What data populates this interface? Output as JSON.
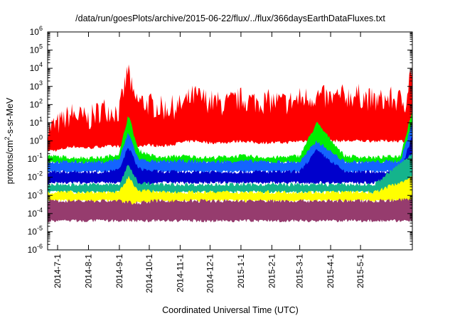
{
  "chart_data": {
    "type": "area",
    "title": "/data/run/goesPlots/archive/2015-06-22/flux/../flux/366daysEarthDataFluxes.txt",
    "xlabel": "Coordinated Universal Time (UTC)",
    "ylabel_parts": [
      "protons/cm",
      "2",
      "-s-sr-MeV"
    ],
    "y_scale": "log",
    "ylim": [
      1e-06,
      1000000.0
    ],
    "xlim": [
      "2014-06-21",
      "2015-06-22"
    ],
    "y_ticks": [
      {
        "base": "10",
        "exp": "-6"
      },
      {
        "base": "10",
        "exp": "-5"
      },
      {
        "base": "10",
        "exp": "-4"
      },
      {
        "base": "10",
        "exp": "-3"
      },
      {
        "base": "10",
        "exp": "-2"
      },
      {
        "base": "10",
        "exp": "-1"
      },
      {
        "base": "10",
        "exp": "0"
      },
      {
        "base": "10",
        "exp": "1"
      },
      {
        "base": "10",
        "exp": "2"
      },
      {
        "base": "10",
        "exp": "3"
      },
      {
        "base": "10",
        "exp": "4"
      },
      {
        "base": "10",
        "exp": "5"
      },
      {
        "base": "10",
        "exp": "6"
      }
    ],
    "x_ticks": [
      {
        "label": "2014-7-1",
        "date": "2014-07-01"
      },
      {
        "label": "2014-8-1",
        "date": "2014-08-01"
      },
      {
        "label": "2014-9-1",
        "date": "2014-09-01"
      },
      {
        "label": "2014-10-1",
        "date": "2014-10-01"
      },
      {
        "label": "2014-11-1",
        "date": "2014-11-01"
      },
      {
        "label": "2014-12-1",
        "date": "2014-12-01"
      },
      {
        "label": "2015-1-1",
        "date": "2015-01-01"
      },
      {
        "label": "2015-2-1",
        "date": "2015-02-01"
      },
      {
        "label": "2015-3-1",
        "date": "2015-03-01"
      },
      {
        "label": "2015-4-1",
        "date": "2015-04-01"
      },
      {
        "label": "2015-5-1",
        "date": "2015-05-01"
      }
    ],
    "grid": false,
    "legend": "none",
    "colors": {
      "red": "#ff0000",
      "green": "#00ee00",
      "blue": "#1464ff",
      "darkblue": "#0000cc",
      "teal": "#14b48c",
      "yellow": "#ffff00",
      "maroon": "#963c6e"
    },
    "series": [
      {
        "color": "red",
        "x": [
          "2014-06-21",
          "2014-07-01",
          "2014-07-15",
          "2014-08-01",
          "2014-08-15",
          "2014-09-01",
          "2014-09-10",
          "2014-09-15",
          "2014-10-01",
          "2014-10-15",
          "2014-11-01",
          "2014-11-15",
          "2014-12-01",
          "2014-12-15",
          "2015-01-01",
          "2015-01-15",
          "2015-02-01",
          "2015-02-15",
          "2015-03-01",
          "2015-03-18",
          "2015-04-01",
          "2015-04-15",
          "2015-05-01",
          "2015-05-15",
          "2015-06-01",
          "2015-06-15",
          "2015-06-22"
        ],
        "upper": [
          5,
          8,
          30,
          15,
          60,
          40,
          10000,
          200,
          100,
          60,
          80,
          300,
          150,
          100,
          200,
          150,
          150,
          120,
          200,
          300,
          200,
          300,
          300,
          150,
          200,
          150,
          20000
        ],
        "lower": [
          0.3,
          0.3,
          0.5,
          0.4,
          0.5,
          0.5,
          0.2,
          0.5,
          0.6,
          0.5,
          0.8,
          1,
          0.8,
          0.8,
          1,
          0.8,
          0.8,
          0.8,
          1,
          1,
          1,
          1,
          1,
          1,
          1,
          1,
          1
        ]
      },
      {
        "color": "green",
        "x": [
          "2014-06-21",
          "2014-07-15",
          "2014-08-15",
          "2014-09-01",
          "2014-09-10",
          "2014-09-20",
          "2014-10-10",
          "2014-11-01",
          "2014-12-01",
          "2015-01-01",
          "2015-02-01",
          "2015-03-01",
          "2015-03-18",
          "2015-04-15",
          "2015-05-15",
          "2015-06-10",
          "2015-06-22"
        ],
        "upper": [
          0.15,
          0.12,
          0.12,
          0.2,
          30,
          0.3,
          0.12,
          0.15,
          0.12,
          0.15,
          0.12,
          0.15,
          10,
          0.15,
          0.12,
          0.15,
          50
        ],
        "lower": [
          0.06,
          0.06,
          0.06,
          0.07,
          0.05,
          0.05,
          0.06,
          0.06,
          0.06,
          0.06,
          0.06,
          0.06,
          0.06,
          0.06,
          0.06,
          0.06,
          0.06
        ]
      },
      {
        "color": "blue",
        "x": [
          "2014-06-21",
          "2014-07-15",
          "2014-08-15",
          "2014-09-01",
          "2014-09-10",
          "2014-09-20",
          "2014-10-10",
          "2014-11-01",
          "2014-12-01",
          "2015-01-01",
          "2015-02-01",
          "2015-03-01",
          "2015-03-18",
          "2015-04-15",
          "2015-05-15",
          "2015-06-10",
          "2015-06-22"
        ],
        "upper": [
          0.07,
          0.07,
          0.07,
          0.1,
          3,
          0.1,
          0.07,
          0.08,
          0.07,
          0.08,
          0.07,
          0.07,
          1,
          0.07,
          0.07,
          0.08,
          10
        ],
        "lower": [
          0.02,
          0.02,
          0.02,
          0.02,
          0.008,
          0.01,
          0.02,
          0.02,
          0.02,
          0.02,
          0.02,
          0.02,
          0.02,
          0.02,
          0.02,
          0.02,
          0.02
        ]
      },
      {
        "color": "darkblue",
        "x": [
          "2014-06-21",
          "2014-07-15",
          "2014-08-15",
          "2014-09-01",
          "2014-09-10",
          "2014-09-20",
          "2014-10-10",
          "2014-11-01",
          "2014-12-01",
          "2015-01-01",
          "2015-02-01",
          "2015-03-01",
          "2015-03-18",
          "2015-04-15",
          "2015-05-15",
          "2015-06-10",
          "2015-06-22"
        ],
        "upper": [
          0.02,
          0.02,
          0.02,
          0.025,
          0.5,
          0.03,
          0.02,
          0.02,
          0.02,
          0.02,
          0.02,
          0.02,
          0.3,
          0.02,
          0.02,
          0.02,
          2
        ],
        "lower": [
          0.005,
          0.005,
          0.005,
          0.005,
          0.002,
          0.003,
          0.005,
          0.005,
          0.005,
          0.005,
          0.005,
          0.005,
          0.005,
          0.005,
          0.005,
          0.005,
          0.005
        ]
      },
      {
        "color": "teal",
        "x": [
          "2014-06-21",
          "2014-09-01",
          "2014-09-10",
          "2014-09-20",
          "2014-10-10",
          "2014-11-15",
          "2015-01-01",
          "2015-02-15",
          "2015-04-01",
          "2015-05-15",
          "2015-06-22"
        ],
        "upper": [
          0.004,
          0.004,
          0.05,
          0.005,
          0.004,
          0.004,
          0.004,
          0.004,
          0.004,
          0.004,
          0.2
        ],
        "lower": [
          0.0015,
          0.0015,
          0.0008,
          0.001,
          0.0015,
          0.0015,
          0.0015,
          0.0015,
          0.0015,
          0.0015,
          0.0015
        ]
      },
      {
        "color": "yellow",
        "x": [
          "2014-06-21",
          "2014-09-01",
          "2014-09-10",
          "2014-09-20",
          "2014-10-10",
          "2014-11-15",
          "2015-01-01",
          "2015-02-15",
          "2015-04-01",
          "2015-05-15",
          "2015-06-22"
        ],
        "upper": [
          0.0015,
          0.0015,
          0.01,
          0.002,
          0.0015,
          0.0015,
          0.0015,
          0.0015,
          0.0015,
          0.0015,
          0.01
        ],
        "lower": [
          0.0005,
          0.0005,
          0.0003,
          0.0004,
          0.0005,
          0.0005,
          0.0005,
          0.0005,
          0.0005,
          0.0005,
          0.0005
        ]
      },
      {
        "color": "maroon",
        "x": [
          "2014-06-21",
          "2014-09-01",
          "2014-09-10",
          "2014-09-20",
          "2014-10-10",
          "2014-11-15",
          "2015-01-01",
          "2015-02-15",
          "2015-04-01",
          "2015-05-15",
          "2015-06-22"
        ],
        "upper": [
          0.0005,
          0.0005,
          0.0004,
          0.0004,
          0.0005,
          0.0005,
          0.0005,
          0.0005,
          0.0005,
          0.0005,
          0.0006
        ],
        "lower": [
          4e-05,
          4e-05,
          4e-05,
          4e-05,
          4e-05,
          4e-05,
          4e-05,
          4e-05,
          4e-05,
          4e-05,
          4e-05
        ]
      }
    ]
  }
}
